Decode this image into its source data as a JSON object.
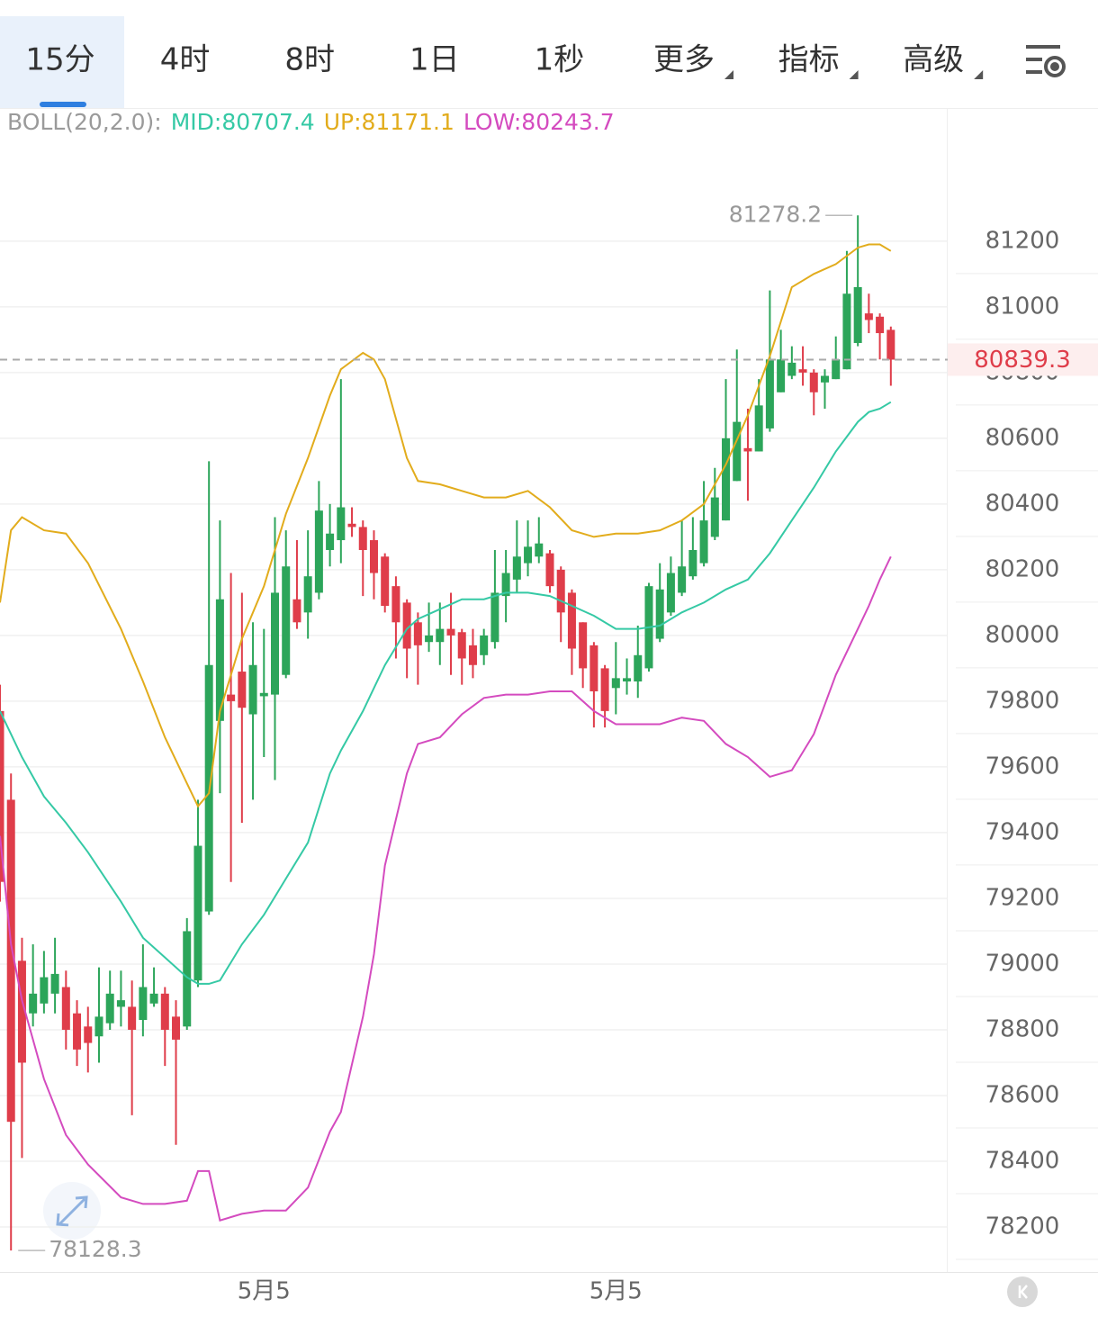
{
  "tabs": [
    {
      "label": "15分",
      "selected": true
    },
    {
      "label": "4时"
    },
    {
      "label": "8时"
    },
    {
      "label": "1日"
    },
    {
      "label": "1秒"
    },
    {
      "label": "更多",
      "dropdown": true
    },
    {
      "label": "指标",
      "dropdown": true
    },
    {
      "label": "高级",
      "dropdown": true
    }
  ],
  "chart_data": {
    "type": "candlestick",
    "indicator": [
      {
        "text": "BOLL(20,2.0):",
        "color": "#9a9a9a"
      },
      {
        "text": "MID:80707.4",
        "color": "#35c9a5"
      },
      {
        "text": "UP:81171.1",
        "color": "#e2ac1c"
      },
      {
        "text": "LOW:80243.7",
        "color": "#d44bbf"
      }
    ],
    "up_color": "#2ca55a",
    "down_color": "#df3d4a",
    "categories": [
      null,
      null,
      null,
      null,
      null,
      null,
      null,
      null,
      null,
      null,
      null,
      null,
      null,
      null,
      null,
      null,
      null,
      null,
      null,
      null,
      null,
      null,
      null,
      null,
      "5月5",
      null,
      null,
      null,
      null,
      null,
      null,
      null,
      null,
      null,
      null,
      null,
      null,
      null,
      null,
      null,
      null,
      null,
      null,
      null,
      null,
      null,
      null,
      null,
      null,
      null,
      null,
      null,
      null,
      null,
      null,
      null,
      "5月5",
      null,
      null,
      null,
      null,
      null,
      null,
      null,
      null,
      null,
      null,
      null,
      null,
      null,
      null,
      null,
      null,
      null,
      null,
      null,
      null,
      null,
      null,
      null,
      null,
      null
    ],
    "open": [
      79770,
      79500,
      79010,
      78850,
      78880,
      78910,
      78930,
      78850,
      78810,
      78780,
      78820,
      78870,
      78870,
      78830,
      78880,
      78910,
      78840,
      78810,
      78950,
      79160,
      79740,
      79820,
      79890,
      79760,
      79815,
      79820,
      79880,
      80110,
      80070,
      80130,
      80260,
      80290,
      80340,
      80330,
      80290,
      80240,
      80150,
      80100,
      80040,
      79980,
      79980,
      80020,
      80010,
      79970,
      79940,
      79980,
      80120,
      80170,
      80220,
      80240,
      80250,
      80200,
      80130,
      80040,
      79970,
      79900,
      79840,
      79860,
      79860,
      79900,
      79990,
      80070,
      80130,
      80180,
      80220,
      80300,
      80350,
      80470,
      80570,
      80560,
      80630,
      80740,
      80790,
      80810,
      80800,
      80770,
      80780,
      80810,
      80890,
      80980,
      80970,
      80930
    ],
    "high": [
      79850,
      79580,
      79080,
      79060,
      79040,
      79080,
      78980,
      78890,
      78870,
      78990,
      78980,
      78980,
      78950,
      79060,
      78990,
      78930,
      78890,
      79140,
      79500,
      80530,
      80350,
      80190,
      80130,
      80040,
      80020,
      80360,
      80320,
      80290,
      80320,
      80470,
      80400,
      80780,
      80390,
      80350,
      80320,
      80250,
      80180,
      80110,
      80070,
      80100,
      80100,
      80130,
      80020,
      80020,
      80020,
      80260,
      80260,
      80350,
      80350,
      80360,
      80260,
      80210,
      80140,
      80040,
      79980,
      79910,
      79980,
      79930,
      80030,
      80160,
      80220,
      80240,
      80350,
      80360,
      80470,
      80510,
      80780,
      80870,
      80690,
      80780,
      81050,
      80930,
      80880,
      80880,
      80810,
      80810,
      80910,
      81170,
      81278.2,
      81040,
      80980,
      80940
    ],
    "low": [
      79190,
      78128.3,
      78410,
      78810,
      78850,
      78850,
      78740,
      78690,
      78670,
      78700,
      78800,
      78810,
      78540,
      78780,
      78870,
      78690,
      78450,
      78800,
      78930,
      79150,
      79520,
      79250,
      79430,
      79500,
      79630,
      79560,
      79870,
      80020,
      79990,
      80110,
      80210,
      80220,
      80300,
      80120,
      80110,
      80070,
      79930,
      79870,
      79850,
      79950,
      79910,
      79880,
      79850,
      79870,
      79910,
      79960,
      80040,
      80130,
      80180,
      80220,
      80130,
      79980,
      79880,
      79840,
      79720,
      79720,
      79760,
      79820,
      79810,
      79890,
      79980,
      80060,
      80120,
      80170,
      80210,
      80290,
      80350,
      80470,
      80410,
      80560,
      80620,
      80740,
      80780,
      80760,
      80670,
      80690,
      80780,
      80810,
      80880,
      80920,
      80840,
      80760
    ],
    "close": [
      79250,
      78520,
      78700,
      78910,
      78960,
      78970,
      78800,
      78740,
      78760,
      78840,
      78910,
      78890,
      78800,
      78930,
      78910,
      78800,
      78770,
      79100,
      79360,
      79910,
      80110,
      79800,
      79780,
      79910,
      79825,
      80130,
      80210,
      80040,
      80180,
      80380,
      80310,
      80390,
      80330,
      80260,
      80190,
      80090,
      80040,
      79960,
      79970,
      80000,
      80020,
      80000,
      79930,
      79910,
      80000,
      80130,
      80190,
      80240,
      80270,
      80280,
      80150,
      80070,
      79960,
      79900,
      79830,
      79770,
      79870,
      79870,
      79940,
      80150,
      80140,
      80190,
      80210,
      80260,
      80350,
      80420,
      80600,
      80650,
      80560,
      80700,
      80840,
      80840,
      80830,
      80800,
      80740,
      80790,
      80840,
      81040,
      81060,
      80960,
      80920,
      80839.3
    ],
    "band_x": [
      0,
      1,
      2,
      4,
      6,
      8,
      11,
      13,
      15,
      17,
      18,
      19,
      20,
      22,
      24,
      26,
      28,
      30,
      31,
      33,
      34,
      35,
      37,
      38,
      40,
      42,
      44,
      46,
      48,
      50,
      52,
      54,
      56,
      58,
      60,
      62,
      64,
      66,
      68,
      70,
      72,
      74,
      76,
      78,
      79,
      80,
      81
    ],
    "bands": [
      {
        "color": "#e2ac1c",
        "values": [
          80100,
          80320,
          80360,
          80320,
          80310,
          80220,
          80020,
          79860,
          79690,
          79550,
          79480,
          79520,
          79770,
          79990,
          80150,
          80370,
          80540,
          80730,
          80810,
          80860,
          80840,
          80780,
          80540,
          80470,
          80460,
          80440,
          80420,
          80420,
          80440,
          80390,
          80320,
          80300,
          80310,
          80310,
          80320,
          80350,
          80400,
          80520,
          80670,
          80850,
          81060,
          81100,
          81130,
          81180,
          81190,
          81190,
          81170
        ]
      },
      {
        "color": "#35c9a5",
        "values": [
          79770,
          79700,
          79630,
          79510,
          79430,
          79340,
          79190,
          79080,
          79020,
          78960,
          78940,
          78940,
          78950,
          79060,
          79150,
          79260,
          79370,
          79580,
          79650,
          79770,
          79840,
          79910,
          80020,
          80050,
          80080,
          80110,
          80110,
          80130,
          80130,
          80120,
          80090,
          80060,
          80020,
          80020,
          80030,
          80070,
          80100,
          80140,
          80170,
          80250,
          80350,
          80450,
          80560,
          80650,
          80680,
          80690,
          80710
        ]
      },
      {
        "color": "#d44bbf",
        "values": [
          79390,
          79060,
          78890,
          78650,
          78480,
          78390,
          78290,
          78270,
          78270,
          78280,
          78370,
          78370,
          78220,
          78240,
          78250,
          78250,
          78320,
          78490,
          78550,
          78840,
          79030,
          79300,
          79580,
          79670,
          79690,
          79760,
          79810,
          79820,
          79820,
          79830,
          79830,
          79770,
          79730,
          79730,
          79730,
          79750,
          79740,
          79670,
          79630,
          79570,
          79590,
          79700,
          79880,
          80020,
          80090,
          80170,
          80240
        ]
      }
    ],
    "ylim": [
      78063,
      81605
    ],
    "yticks": [
      78200,
      78400,
      78600,
      78800,
      79000,
      79200,
      79400,
      79600,
      79800,
      80000,
      80200,
      80400,
      80600,
      80800,
      81000,
      81200
    ],
    "grid": true
  }
}
